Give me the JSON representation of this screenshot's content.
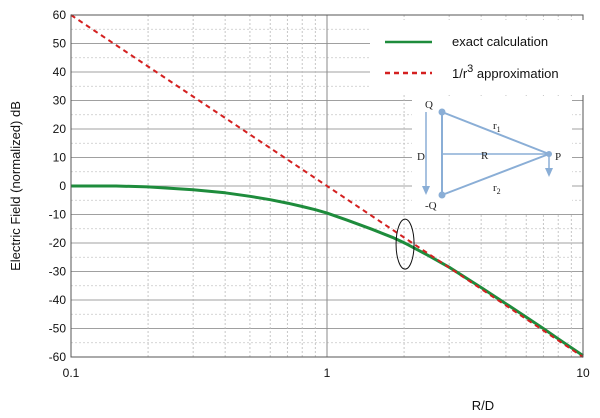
{
  "chart_data": {
    "type": "line",
    "xscale": "log",
    "xlim": [
      0.1,
      10
    ],
    "ylim": [
      -60,
      60
    ],
    "xlabel": "R/D",
    "ylabel": "Electric Field (normalized) dB",
    "x_ticks": [
      "0.1",
      "1",
      "10"
    ],
    "y_ticks": [
      "60",
      "50",
      "40",
      "30",
      "20",
      "10",
      "0",
      "-10",
      "-20",
      "-30",
      "-40",
      "-50",
      "-60"
    ],
    "grid": true,
    "legend_position": "top-right",
    "series": [
      {
        "name": "exact calculation",
        "color": "#1e8c3c",
        "style": "solid",
        "points": [
          [
            0.1,
            0
          ],
          [
            0.15,
            0
          ],
          [
            0.2,
            -0.3
          ],
          [
            0.3,
            -1.3
          ],
          [
            0.4,
            -2.4
          ],
          [
            0.5,
            -3.6
          ],
          [
            0.6,
            -4.8
          ],
          [
            0.7,
            -6.0
          ],
          [
            0.8,
            -7.2
          ],
          [
            0.9,
            -8.3
          ],
          [
            1.0,
            -9.5
          ],
          [
            1.2,
            -12.0
          ],
          [
            1.5,
            -15.2
          ],
          [
            1.8,
            -18.0
          ],
          [
            2.0,
            -19.9
          ],
          [
            2.5,
            -24.5
          ],
          [
            3.0,
            -28.5
          ],
          [
            4.0,
            -35.6
          ],
          [
            5.0,
            -41.3
          ],
          [
            6.0,
            -46.0
          ],
          [
            7.0,
            -50.0
          ],
          [
            8.0,
            -53.6
          ],
          [
            10.0,
            -59.5
          ]
        ]
      },
      {
        "name_prefix": "1/r",
        "name_sup": "3",
        "name_suffix": " approximation",
        "color": "#d42020",
        "style": "dashed",
        "points": [
          [
            0.1,
            60
          ],
          [
            10,
            -60
          ]
        ]
      }
    ],
    "annotations": [
      {
        "type": "ellipse",
        "x": 2.0,
        "y": -19
      }
    ],
    "inset": {
      "labels": [
        "Q",
        "-Q",
        "D",
        "R",
        "P"
      ],
      "r_base": "r",
      "r1_sub": "1",
      "r2_sub": "2",
      "color": "#8aaed6"
    }
  }
}
